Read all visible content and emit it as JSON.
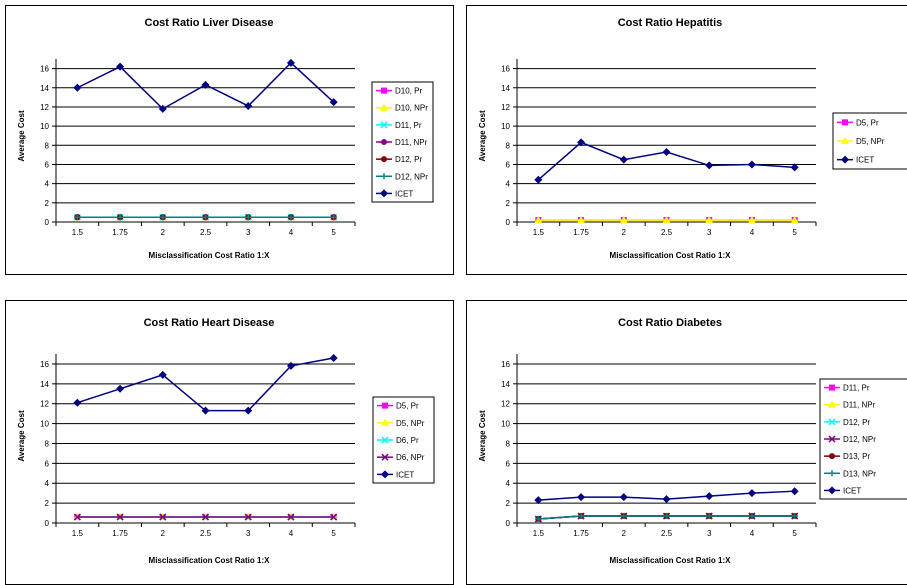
{
  "chart_data": [
    {
      "type": "line",
      "title": "Cost Ratio Liver Disease",
      "xlabel": "Misclassification Cost Ratio 1:X",
      "ylabel": "Average Cost",
      "categories": [
        "1.5",
        "1.75",
        "2",
        "2.5",
        "3",
        "4",
        "5"
      ],
      "yticks": [
        "0",
        "2",
        "4",
        "6",
        "8",
        "10",
        "12",
        "14",
        "16"
      ],
      "ylim": [
        0,
        17
      ],
      "grid": true,
      "legend_position": "right",
      "series": [
        {
          "name": "D10, Pr",
          "color": "#ff00ff",
          "marker": "square",
          "values": [
            0.5,
            0.5,
            0.5,
            0.5,
            0.5,
            0.5,
            0.5
          ]
        },
        {
          "name": "D10, NPr",
          "color": "#ffff00",
          "marker": "triangle",
          "values": [
            0.5,
            0.5,
            0.5,
            0.5,
            0.5,
            0.5,
            0.5
          ]
        },
        {
          "name": "D11, Pr",
          "color": "#00ffff",
          "marker": "x",
          "values": [
            0.5,
            0.5,
            0.5,
            0.5,
            0.5,
            0.5,
            0.5
          ]
        },
        {
          "name": "D11, NPr",
          "color": "#800080",
          "marker": "circle",
          "values": [
            0.5,
            0.5,
            0.5,
            0.5,
            0.5,
            0.5,
            0.5
          ]
        },
        {
          "name": "D12, Pr",
          "color": "#800000",
          "marker": "circle",
          "values": [
            0.5,
            0.5,
            0.5,
            0.5,
            0.5,
            0.5,
            0.5
          ]
        },
        {
          "name": "D12, NPr",
          "color": "#008080",
          "marker": "plus",
          "values": [
            0.5,
            0.5,
            0.5,
            0.5,
            0.5,
            0.5,
            0.5
          ]
        },
        {
          "name": "ICET",
          "color": "#000080",
          "marker": "diamond",
          "values": [
            14.0,
            16.2,
            11.8,
            14.3,
            12.1,
            16.6,
            12.5
          ]
        }
      ]
    },
    {
      "type": "line",
      "title": "Cost Ratio Hepatitis",
      "xlabel": "Misclassification Cost Ratio 1:X",
      "ylabel": "Average Cost",
      "categories": [
        "1.5",
        "1.75",
        "2",
        "2.5",
        "3",
        "4",
        "5"
      ],
      "yticks": [
        "0",
        "2",
        "4",
        "6",
        "8",
        "10",
        "12",
        "14",
        "16"
      ],
      "ylim": [
        0,
        17
      ],
      "grid": true,
      "legend_position": "right",
      "series": [
        {
          "name": "D5, Pr",
          "color": "#ff00ff",
          "marker": "square",
          "values": [
            0.2,
            0.2,
            0.2,
            0.2,
            0.2,
            0.2,
            0.2
          ]
        },
        {
          "name": "D5, NPr",
          "color": "#ffff00",
          "marker": "triangle",
          "values": [
            0.2,
            0.2,
            0.2,
            0.2,
            0.2,
            0.2,
            0.2
          ]
        },
        {
          "name": "ICET",
          "color": "#000080",
          "marker": "diamond",
          "values": [
            4.4,
            8.3,
            6.5,
            7.3,
            5.9,
            6.0,
            5.7
          ]
        }
      ]
    },
    {
      "type": "line",
      "title": "Cost Ratio Heart Disease",
      "xlabel": "Misclassification Cost Ratio 1:X",
      "ylabel": "Average Cost",
      "categories": [
        "1.5",
        "1.75",
        "2",
        "2.5",
        "3",
        "4",
        "5"
      ],
      "yticks": [
        "0",
        "2",
        "4",
        "6",
        "8",
        "10",
        "12",
        "14",
        "16"
      ],
      "ylim": [
        0,
        17
      ],
      "grid": true,
      "legend_position": "right",
      "series": [
        {
          "name": "D5, Pr",
          "color": "#ff00ff",
          "marker": "square",
          "values": [
            0.6,
            0.6,
            0.6,
            0.6,
            0.6,
            0.6,
            0.6
          ]
        },
        {
          "name": "D5, NPr",
          "color": "#ffff00",
          "marker": "triangle",
          "values": [
            0.6,
            0.6,
            0.6,
            0.6,
            0.6,
            0.6,
            0.6
          ]
        },
        {
          "name": "D6, Pr",
          "color": "#00ffff",
          "marker": "x",
          "values": [
            0.6,
            0.6,
            0.6,
            0.6,
            0.6,
            0.6,
            0.6
          ]
        },
        {
          "name": "D6, NPr",
          "color": "#800080",
          "marker": "x",
          "values": [
            0.6,
            0.6,
            0.6,
            0.6,
            0.6,
            0.6,
            0.6
          ]
        },
        {
          "name": "ICET",
          "color": "#000080",
          "marker": "diamond",
          "values": [
            12.1,
            13.5,
            14.9,
            11.3,
            11.3,
            15.8,
            16.6
          ]
        }
      ]
    },
    {
      "type": "line",
      "title": "Cost Ratio Diabetes",
      "xlabel": "Misclassification Cost Ratio 1:X",
      "ylabel": "Average Cost",
      "categories": [
        "1.5",
        "1.75",
        "2",
        "2.5",
        "3",
        "4",
        "5"
      ],
      "yticks": [
        "0",
        "2",
        "4",
        "6",
        "8",
        "10",
        "12",
        "14",
        "16"
      ],
      "ylim": [
        0,
        17
      ],
      "grid": true,
      "legend_position": "right",
      "series": [
        {
          "name": "D11, Pr",
          "color": "#ff00ff",
          "marker": "square",
          "values": [
            0.4,
            0.7,
            0.7,
            0.7,
            0.7,
            0.7,
            0.7
          ]
        },
        {
          "name": "D11, NPr",
          "color": "#ffff00",
          "marker": "triangle",
          "values": [
            0.4,
            0.7,
            0.7,
            0.7,
            0.7,
            0.7,
            0.7
          ]
        },
        {
          "name": "D12, Pr",
          "color": "#00ffff",
          "marker": "x",
          "values": [
            0.4,
            0.7,
            0.7,
            0.7,
            0.7,
            0.7,
            0.7
          ]
        },
        {
          "name": "D12, NPr",
          "color": "#800080",
          "marker": "x",
          "values": [
            0.4,
            0.7,
            0.7,
            0.7,
            0.7,
            0.7,
            0.7
          ]
        },
        {
          "name": "D13, Pr",
          "color": "#800000",
          "marker": "circle",
          "values": [
            0.4,
            0.7,
            0.7,
            0.7,
            0.7,
            0.7,
            0.7
          ]
        },
        {
          "name": "D13, NPr",
          "color": "#008080",
          "marker": "plus",
          "values": [
            0.4,
            0.7,
            0.7,
            0.7,
            0.7,
            0.7,
            0.7
          ]
        },
        {
          "name": "ICET",
          "color": "#000080",
          "marker": "diamond",
          "values": [
            2.3,
            2.6,
            2.6,
            2.4,
            2.7,
            3.0,
            3.2
          ]
        }
      ]
    }
  ]
}
